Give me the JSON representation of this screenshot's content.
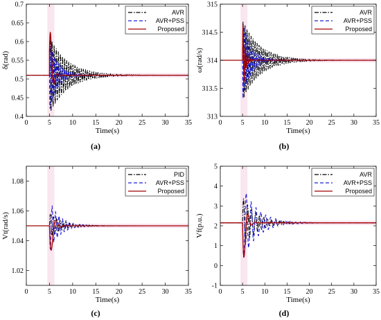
{
  "colors": {
    "avr": "#000000",
    "pss": "#1f1fd6",
    "proposed": "#a00000",
    "highlight": "#f2c7dc"
  },
  "chart_data": [
    {
      "type": "line",
      "caption": "(a)",
      "xlabel": "Time(s)",
      "ylabel": "δ(rad)",
      "xlim": [
        0,
        35
      ],
      "ylim": [
        0.4,
        0.7
      ],
      "xticks": [
        0,
        5,
        10,
        15,
        20,
        25,
        30,
        35
      ],
      "yticks": [
        0.4,
        0.45,
        0.5,
        0.55,
        0.6,
        0.65,
        0.7
      ],
      "ytick_labels": [
        "0.4",
        "0.45",
        "0.5",
        "0.55",
        "0.6",
        "0.65",
        "0.7"
      ],
      "legend_position": "top-right",
      "steady": 0.51,
      "t0": 5.0,
      "series": [
        {
          "name": "AVR",
          "style": "dashdot",
          "amp": 0.105,
          "decay": 0.26,
          "period": 0.45
        },
        {
          "name": "AVR+PSS",
          "style": "dashed",
          "amp": 0.095,
          "decay": 0.55,
          "period": 0.42
        },
        {
          "name": "Proposed",
          "style": "solid",
          "shape": "pulse",
          "amp": 0.19,
          "decay": 2.2,
          "period": 1.5
        }
      ]
    },
    {
      "type": "line",
      "caption": "(b)",
      "xlabel": "Time(s)",
      "ylabel": "ω(rad/s)",
      "xlim": [
        0,
        35
      ],
      "ylim": [
        313,
        315
      ],
      "xticks": [
        0,
        5,
        10,
        15,
        20,
        25,
        30,
        35
      ],
      "yticks": [
        313,
        313.5,
        314,
        314.5,
        315
      ],
      "ytick_labels": [
        "313",
        "313.5",
        "314",
        "314.5",
        "315"
      ],
      "legend_position": "top-right",
      "steady": 314,
      "t0": 5.0,
      "series": [
        {
          "name": "AVR",
          "style": "dashdot",
          "amp": 0.72,
          "decay": 0.26,
          "period": 0.45
        },
        {
          "name": "AVR+PSS",
          "style": "dashed",
          "amp": 0.72,
          "decay": 0.55,
          "period": 0.42
        },
        {
          "name": "Proposed",
          "style": "solid",
          "amp": 0.8,
          "decay": 2.0,
          "period": 0.5
        }
      ]
    },
    {
      "type": "line",
      "caption": "(c)",
      "xlabel": "Time(s)",
      "ylabel": "Vt(rad/s)",
      "xlim": [
        0,
        35
      ],
      "ylim": [
        1.01,
        1.09
      ],
      "xticks": [
        0,
        5,
        10,
        15,
        20,
        25,
        30,
        35
      ],
      "yticks": [
        1.02,
        1.04,
        1.06,
        1.08
      ],
      "ytick_labels": [
        "1.02",
        "1.04",
        "1.06",
        "1.08"
      ],
      "legend_position": "top-right",
      "steady": 1.05,
      "t0": 5.0,
      "series": [
        {
          "name": "PID",
          "style": "dashdot",
          "amp": 0.008,
          "decay": 0.35,
          "period": 0.7
        },
        {
          "name": "AVR+PSS",
          "style": "dashed",
          "amp": 0.017,
          "decay": 0.45,
          "period": 0.75
        },
        {
          "name": "Proposed",
          "style": "solid",
          "shape": "dip",
          "amp": 0.031,
          "decay": 1.5,
          "period": 2.0
        }
      ]
    },
    {
      "type": "line",
      "caption": "(d)",
      "xlabel": "Time(s)",
      "ylabel": "Vf(p.u.)",
      "xlim": [
        0,
        35
      ],
      "ylim": [
        -1,
        5
      ],
      "xticks": [
        0,
        5,
        10,
        15,
        20,
        25,
        30,
        35
      ],
      "yticks": [
        -1,
        0,
        1,
        2,
        3,
        4,
        5
      ],
      "ytick_labels": [
        "-1",
        "0",
        "1",
        "2",
        "3",
        "4",
        "5"
      ],
      "legend_position": "top-right",
      "steady": 2.15,
      "t0": 5.0,
      "series": [
        {
          "name": "AVR",
          "style": "dashdot",
          "amp": 1.3,
          "decay": 0.32,
          "period": 0.9
        },
        {
          "name": "AVR+PSS",
          "style": "dashed",
          "amp": 1.9,
          "decay": 0.3,
          "period": 1.1
        },
        {
          "name": "Proposed",
          "style": "solid",
          "shape": "dip",
          "amp": 3.1,
          "decay": 1.6,
          "period": 1.7
        }
      ]
    }
  ]
}
